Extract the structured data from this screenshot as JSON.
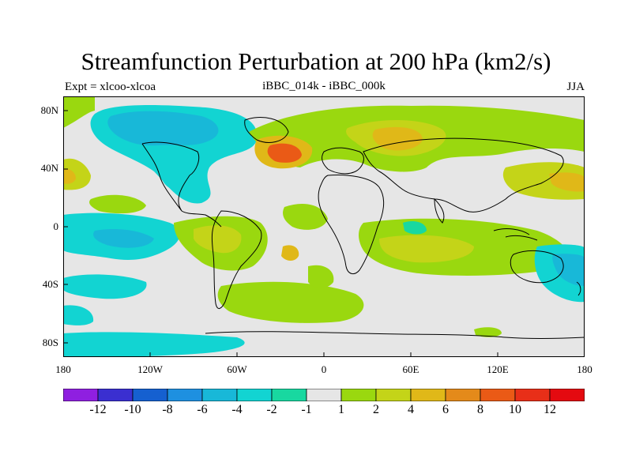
{
  "title": "Streamfunction Perturbation at 200 hPa (km2/s)",
  "subtitle_left": "Expt = xlcoo-xlcoa",
  "subtitle_center": "iBBC_014k - iBBC_000k",
  "subtitle_right": "JJA",
  "lat_labels": [
    "80N",
    "40N",
    "0",
    "40S",
    "80S"
  ],
  "lon_labels": [
    "180",
    "120W",
    "60W",
    "0",
    "60E",
    "120E",
    "180"
  ],
  "colorbar": {
    "colors": [
      "#8f1fe0",
      "#3a2fd0",
      "#1560d0",
      "#1e90e0",
      "#18b8d8",
      "#12d4d2",
      "#18d8a0",
      "#e6e6e6",
      "#9ad80f",
      "#c4d418",
      "#e0b818",
      "#e48a1a",
      "#ea5a16",
      "#e82f18",
      "#e40a10"
    ],
    "tick_labels": [
      "-12",
      "-10",
      "-8",
      "-6",
      "-4",
      "-2",
      "-1",
      "1",
      "2",
      "4",
      "6",
      "8",
      "10",
      "12"
    ]
  },
  "palette": {
    "neutral": "#e6e6e6",
    "cyan": "#12d4d2",
    "teal": "#18b8d8",
    "green": "#18d8a0",
    "lime": "#9ad80f",
    "olive": "#c4d418",
    "gold": "#e0b818",
    "orange": "#e48a1a",
    "dark_orange": "#ea5a16"
  }
}
